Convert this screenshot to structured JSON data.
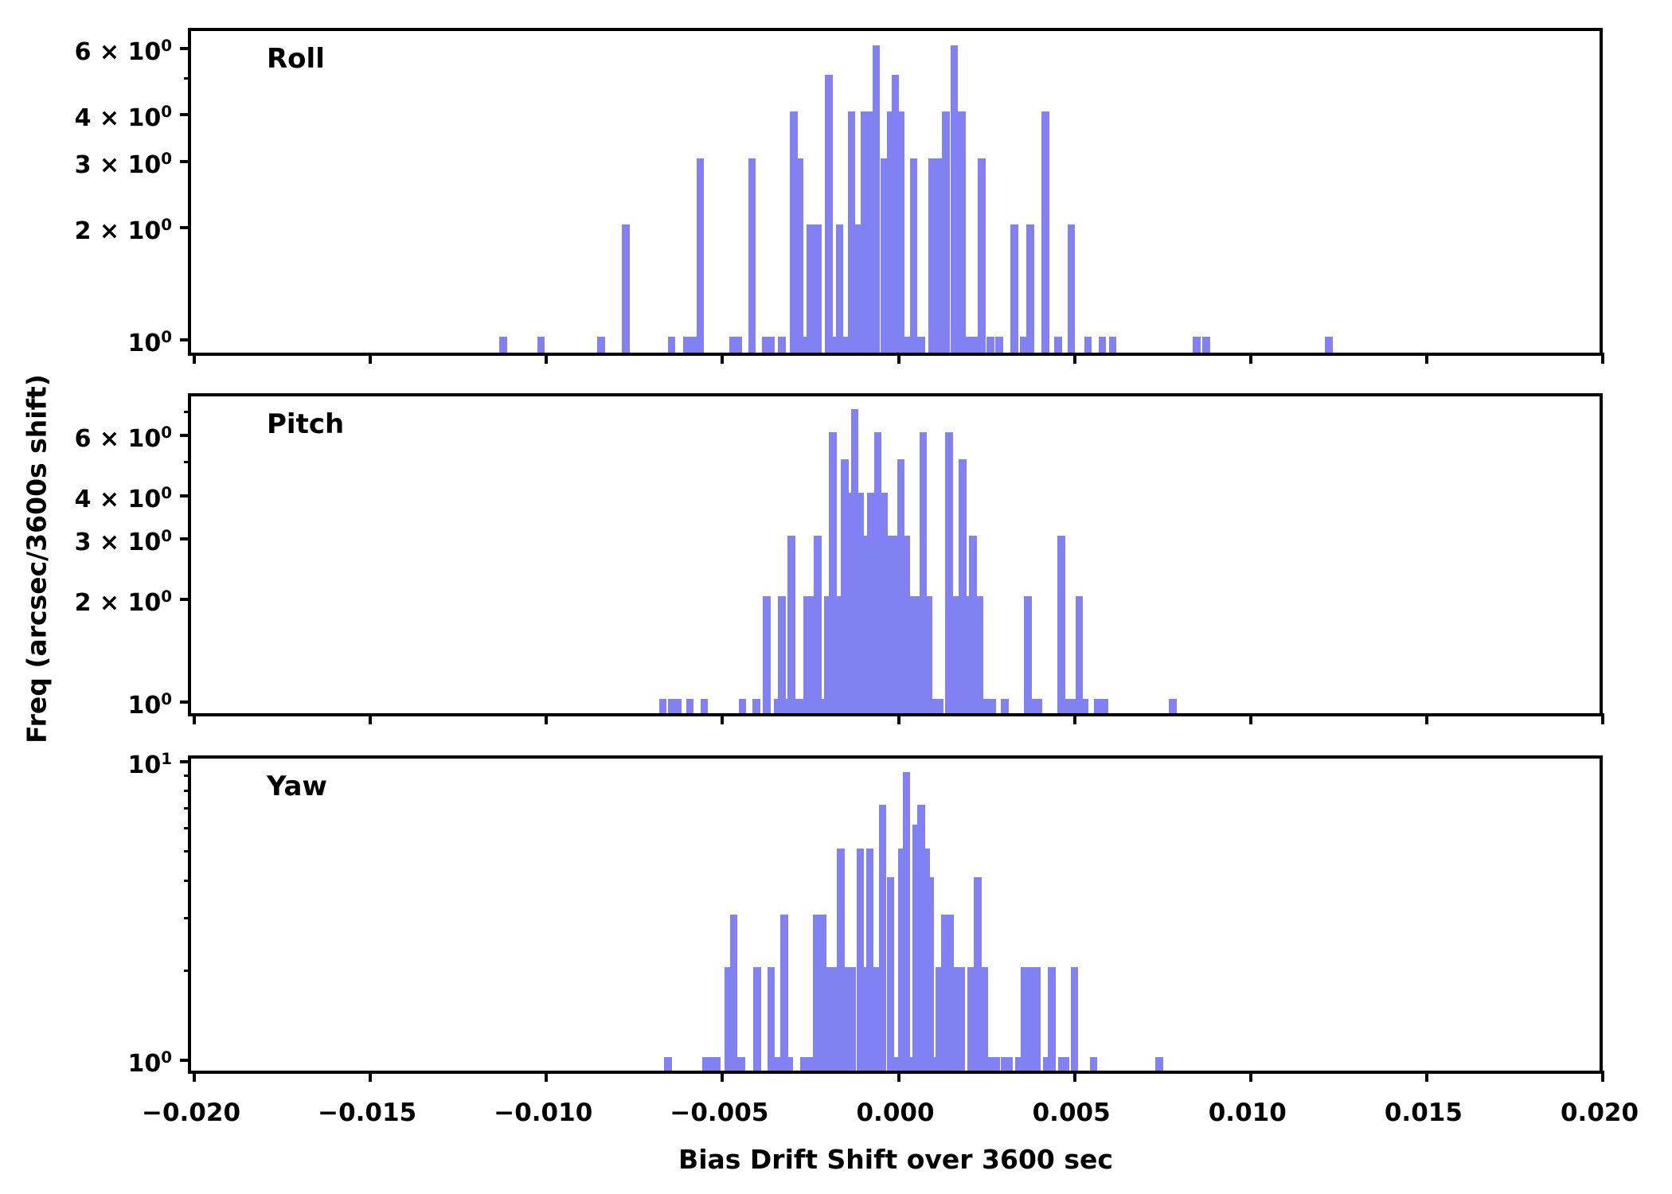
{
  "chart_data": {
    "type": "bar",
    "title": "",
    "xlabel": "Bias Drift Shift over 3600 sec",
    "ylabel": "Freq (arcsec/3600s shift)",
    "xlim": [
      -0.02,
      0.02
    ],
    "x_scale": "linear",
    "y_scale": "log",
    "grid": false,
    "bar_color": "#8181F3",
    "axis_color": "#000000",
    "bin_width": 0.000216,
    "xticks": {
      "values": [
        -0.02,
        -0.015,
        -0.01,
        -0.005,
        0.0,
        0.005,
        0.01,
        0.015,
        0.02
      ],
      "labels": [
        "−0.020",
        "−0.015",
        "−0.010",
        "−0.005",
        "0.000",
        "0.005",
        "0.010",
        "0.015",
        "0.020"
      ]
    },
    "panels": [
      {
        "label": "Roll",
        "ylim": [
          0.908,
          6.56
        ],
        "ytick_major": [
          {
            "v": 6,
            "text": "6 × 10",
            "sup": "0"
          },
          {
            "v": 4,
            "text": "4 × 10",
            "sup": "0"
          },
          {
            "v": 3,
            "text": "3 × 10",
            "sup": "0"
          },
          {
            "v": 2,
            "text": "2 × 10",
            "sup": "0"
          },
          {
            "v": 1,
            "text": "10",
            "sup": "0"
          }
        ],
        "ytick_minor": [
          5
        ],
        "bars": [
          [
            -0.01114,
            1
          ],
          [
            -0.01006,
            1
          ],
          [
            -0.00835,
            1
          ],
          [
            -0.00765,
            2
          ],
          [
            -0.00635,
            1
          ],
          [
            -0.00592,
            1
          ],
          [
            -0.00574,
            1
          ],
          [
            -0.00554,
            3
          ],
          [
            -0.00461,
            1
          ],
          [
            -0.00446,
            1
          ],
          [
            -0.00407,
            3
          ],
          [
            -0.00369,
            1
          ],
          [
            -0.00353,
            1
          ],
          [
            -0.00322,
            1
          ],
          [
            -0.00288,
            4
          ],
          [
            -0.00272,
            3
          ],
          [
            -0.00259,
            1
          ],
          [
            -0.00241,
            2
          ],
          [
            -0.00221,
            2
          ],
          [
            -0.00189,
            5
          ],
          [
            -0.00173,
            1
          ],
          [
            -0.00158,
            2
          ],
          [
            -0.00142,
            1
          ],
          [
            -0.00124,
            4
          ],
          [
            -0.00106,
            2
          ],
          [
            -0.00088,
            4
          ],
          [
            -0.00072,
            4
          ],
          [
            -0.00054,
            6
          ],
          [
            -0.00032,
            3
          ],
          [
            -0.00014,
            4
          ],
          [
            0.0,
            5
          ],
          [
            0.00016,
            4
          ],
          [
            0.00034,
            1
          ],
          [
            0.00052,
            3
          ],
          [
            0.00074,
            1
          ],
          [
            0.00104,
            3
          ],
          [
            0.00124,
            3
          ],
          [
            0.00144,
            4
          ],
          [
            0.00167,
            6
          ],
          [
            0.00189,
            4
          ],
          [
            0.00209,
            1
          ],
          [
            0.0023,
            1
          ],
          [
            0.00245,
            3
          ],
          [
            0.0027,
            1
          ],
          [
            0.00295,
            1
          ],
          [
            0.00338,
            2
          ],
          [
            0.00365,
            1
          ],
          [
            0.00383,
            2
          ],
          [
            0.00426,
            4
          ],
          [
            0.00462,
            1
          ],
          [
            0.005,
            2
          ],
          [
            0.00547,
            1
          ],
          [
            0.00588,
            1
          ],
          [
            0.00617,
            1
          ],
          [
            0.00856,
            1
          ],
          [
            0.00883,
            1
          ],
          [
            0.01231,
            1
          ]
        ]
      },
      {
        "label": "Pitch",
        "ylim": [
          0.91,
          7.62
        ],
        "ytick_major": [
          {
            "v": 6,
            "text": "6 × 10",
            "sup": "0"
          },
          {
            "v": 4,
            "text": "4 × 10",
            "sup": "0"
          },
          {
            "v": 3,
            "text": "3 × 10",
            "sup": "0"
          },
          {
            "v": 2,
            "text": "2 × 10",
            "sup": "0"
          },
          {
            "v": 1,
            "text": "10",
            "sup": "0"
          }
        ],
        "ytick_minor": [
          5,
          7
        ],
        "bars": [
          [
            -0.0066,
            1
          ],
          [
            -0.00635,
            1
          ],
          [
            -0.00619,
            1
          ],
          [
            -0.00583,
            1
          ],
          [
            -0.00543,
            1
          ],
          [
            -0.00434,
            1
          ],
          [
            -0.00394,
            1
          ],
          [
            -0.00365,
            2
          ],
          [
            -0.00333,
            1
          ],
          [
            -0.00322,
            2
          ],
          [
            -0.00308,
            1
          ],
          [
            -0.00295,
            3
          ],
          [
            -0.00275,
            1
          ],
          [
            -0.00263,
            1
          ],
          [
            -0.0025,
            2
          ],
          [
            -0.00236,
            2
          ],
          [
            -0.00221,
            3
          ],
          [
            -0.00205,
            1
          ],
          [
            -0.00191,
            2
          ],
          [
            -0.00178,
            6
          ],
          [
            -0.00164,
            2
          ],
          [
            -0.00153,
            2
          ],
          [
            -0.00144,
            5
          ],
          [
            -0.00126,
            4
          ],
          [
            -0.00115,
            7
          ],
          [
            -0.00101,
            4
          ],
          [
            -0.00086,
            3
          ],
          [
            -0.0007,
            4
          ],
          [
            -0.0005,
            6
          ],
          [
            -0.00032,
            4
          ],
          [
            -0.00016,
            3
          ],
          [
            0.0,
            3
          ],
          [
            0.00016,
            5
          ],
          [
            0.00032,
            3
          ],
          [
            0.0005,
            2
          ],
          [
            0.00063,
            2
          ],
          [
            0.00079,
            6
          ],
          [
            0.00095,
            2
          ],
          [
            0.0011,
            1
          ],
          [
            0.00126,
            1
          ],
          [
            0.00153,
            6
          ],
          [
            0.00169,
            2
          ],
          [
            0.00191,
            5
          ],
          [
            0.00207,
            2
          ],
          [
            0.00221,
            3
          ],
          [
            0.00239,
            2
          ],
          [
            0.00259,
            1
          ],
          [
            0.00275,
            1
          ],
          [
            0.00311,
            1
          ],
          [
            0.00376,
            2
          ],
          [
            0.00392,
            1
          ],
          [
            0.00407,
            1
          ],
          [
            0.00471,
            3
          ],
          [
            0.00486,
            1
          ],
          [
            0.00504,
            1
          ],
          [
            0.00522,
            2
          ],
          [
            0.00538,
            1
          ],
          [
            0.00574,
            1
          ],
          [
            0.00594,
            1
          ],
          [
            0.00788,
            1
          ]
        ]
      },
      {
        "label": "Yaw",
        "ylim": [
          0.903,
          10.0
        ],
        "ytick_major": [
          {
            "v": 10,
            "text": "10",
            "sup": "1"
          },
          {
            "v": 1,
            "text": "10",
            "sup": "0"
          }
        ],
        "ytick_minor": [
          2,
          3,
          4,
          5,
          6,
          7,
          8,
          9
        ],
        "bars": [
          [
            -0.00646,
            1
          ],
          [
            -0.00538,
            1
          ],
          [
            -0.00522,
            1
          ],
          [
            -0.00507,
            1
          ],
          [
            -0.00475,
            2
          ],
          [
            -0.00459,
            3
          ],
          [
            -0.00437,
            1
          ],
          [
            -0.00392,
            2
          ],
          [
            -0.00353,
            2
          ],
          [
            -0.00338,
            1
          ],
          [
            -0.00315,
            3
          ],
          [
            -0.00302,
            1
          ],
          [
            -0.00259,
            1
          ],
          [
            -0.00243,
            1
          ],
          [
            -0.00223,
            3
          ],
          [
            -0.00207,
            3
          ],
          [
            -0.00194,
            2
          ],
          [
            -0.00178,
            2
          ],
          [
            -0.00155,
            5
          ],
          [
            -0.00137,
            2
          ],
          [
            -0.00122,
            2
          ],
          [
            -0.00099,
            5
          ],
          [
            -0.00086,
            2
          ],
          [
            -0.00072,
            5
          ],
          [
            -0.00054,
            2
          ],
          [
            -0.00036,
            7
          ],
          [
            -0.00014,
            4
          ],
          [
            2e-05,
            1
          ],
          [
            0.00018,
            5
          ],
          [
            0.00032,
            9
          ],
          [
            0.00047,
            1
          ],
          [
            0.00059,
            6
          ],
          [
            0.00074,
            7
          ],
          [
            0.00088,
            5
          ],
          [
            0.00099,
            4
          ],
          [
            0.00113,
            1
          ],
          [
            0.00126,
            2
          ],
          [
            0.0014,
            3
          ],
          [
            0.00155,
            3
          ],
          [
            0.00171,
            2
          ],
          [
            0.00187,
            2
          ],
          [
            0.00216,
            2
          ],
          [
            0.00234,
            4
          ],
          [
            0.00252,
            2
          ],
          [
            0.00268,
            1
          ],
          [
            0.00286,
            1
          ],
          [
            0.00311,
            1
          ],
          [
            0.00322,
            1
          ],
          [
            0.00351,
            1
          ],
          [
            0.00367,
            2
          ],
          [
            0.0039,
            2
          ],
          [
            0.00403,
            2
          ],
          [
            0.0043,
            1
          ],
          [
            0.00444,
            2
          ],
          [
            0.00473,
            1
          ],
          [
            0.00484,
            1
          ],
          [
            0.00509,
            2
          ],
          [
            0.00563,
            1
          ],
          [
            0.0075,
            1
          ]
        ]
      }
    ]
  }
}
